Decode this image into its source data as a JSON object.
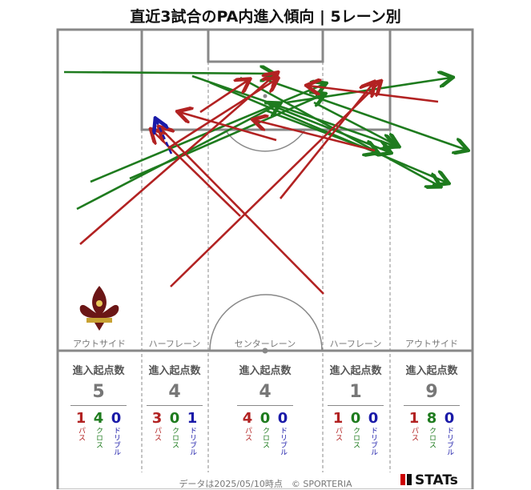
{
  "title": "直近3試合のPA内進入傾向 | 5レーン別",
  "lanes": [
    {
      "label": "アウトサイド",
      "head": "進入起点数",
      "total": "5",
      "pass": "1",
      "cross": "4",
      "dribble": "0"
    },
    {
      "label": "ハーフレーン",
      "head": "進入起点数",
      "total": "4",
      "pass": "3",
      "cross": "0",
      "dribble": "1"
    },
    {
      "label": "センターレーン",
      "head": "進入起点数",
      "total": "4",
      "pass": "4",
      "cross": "0",
      "dribble": "0"
    },
    {
      "label": "ハーフレーン",
      "head": "進入起点数",
      "total": "1",
      "pass": "1",
      "cross": "0",
      "dribble": "0"
    },
    {
      "label": "アウトサイド",
      "head": "進入起点数",
      "total": "9",
      "pass": "1",
      "cross": "8",
      "dribble": "0"
    }
  ],
  "stat_labels": {
    "pass": "パス",
    "cross": "クロス",
    "dribble": "ドリブル"
  },
  "footer": "データは2025/05/10時点　© SPORTERIA",
  "brand": "STATs",
  "colors": {
    "pass": "#b22222",
    "cross": "#1e7b1e",
    "dribble": "#1a1aa8",
    "pitch_line": "#888888"
  },
  "arrows": [
    {
      "type": "cross"
    },
    {
      "type": "cross"
    },
    {
      "type": "cross"
    },
    {
      "type": "cross"
    },
    {
      "type": "cross"
    },
    {
      "type": "cross"
    },
    {
      "type": "cross"
    },
    {
      "type": "cross"
    },
    {
      "type": "cross"
    },
    {
      "type": "cross"
    },
    {
      "type": "cross"
    },
    {
      "type": "cross"
    },
    {
      "type": "pass"
    },
    {
      "type": "pass"
    },
    {
      "type": "pass"
    },
    {
      "type": "pass"
    },
    {
      "type": "pass"
    },
    {
      "type": "pass"
    },
    {
      "type": "pass"
    },
    {
      "type": "pass"
    },
    {
      "type": "pass"
    },
    {
      "type": "pass"
    },
    {
      "type": "dribble"
    }
  ]
}
